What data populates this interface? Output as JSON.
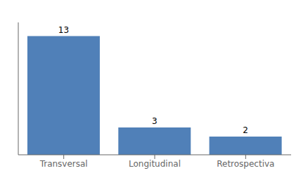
{
  "chart_data": {
    "type": "bar",
    "categories": [
      "Transversal",
      "Longitudinal",
      "Retrospectiva"
    ],
    "values": [
      13,
      3,
      2
    ],
    "color": "#5080b8",
    "ylim": [
      0,
      14.5
    ],
    "data_labels": true,
    "tick_labels": "x",
    "grid": false
  }
}
